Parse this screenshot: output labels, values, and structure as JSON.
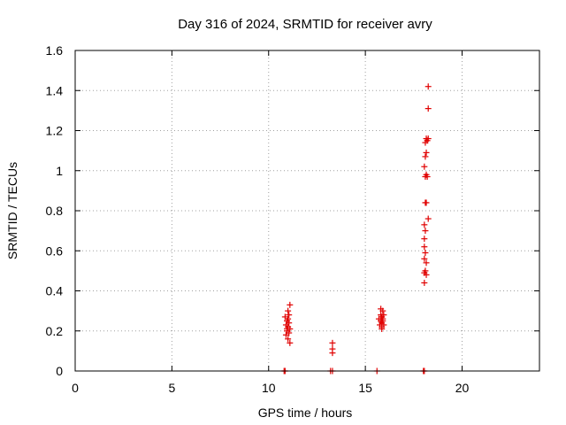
{
  "chart_data": {
    "type": "scatter",
    "title": "Day 316 of 2024, SRMTID for receiver avry",
    "xlabel": "GPS time / hours",
    "ylabel": "SRMTID / TECUs",
    "xlim": [
      0,
      24
    ],
    "ylim": [
      0,
      1.6
    ],
    "xticks": [
      0,
      5,
      10,
      15,
      20
    ],
    "xtick_labels": [
      "0",
      "5",
      "10",
      "15",
      "20"
    ],
    "yticks": [
      0,
      0.2,
      0.4,
      0.6,
      0.8,
      1.0,
      1.2,
      1.4,
      1.6
    ],
    "ytick_labels": [
      "0",
      "0.2",
      "0.4",
      "0.6",
      "0.8",
      "1",
      "1.2",
      "1.4",
      "1.6"
    ],
    "grid": true,
    "marker": "+",
    "marker_color": "#e00000",
    "series": [
      {
        "name": "SRMTID",
        "points": [
          [
            10.8,
            0
          ],
          [
            10.85,
            0
          ],
          [
            10.85,
            0.27
          ],
          [
            10.9,
            0.23
          ],
          [
            10.9,
            0.18
          ],
          [
            10.95,
            0.25
          ],
          [
            10.95,
            0.2
          ],
          [
            11.0,
            0.3
          ],
          [
            11.0,
            0.22
          ],
          [
            11.0,
            0.16
          ],
          [
            11.05,
            0.28
          ],
          [
            11.05,
            0.24
          ],
          [
            11.05,
            0.19
          ],
          [
            11.1,
            0.33
          ],
          [
            11.1,
            0.21
          ],
          [
            11.1,
            0.14
          ],
          [
            11.0,
            0.26
          ],
          [
            10.95,
            0.21
          ],
          [
            13.2,
            0
          ],
          [
            13.3,
            0
          ],
          [
            13.3,
            0.14
          ],
          [
            13.3,
            0.11
          ],
          [
            13.3,
            0.09
          ],
          [
            15.6,
            0
          ],
          [
            15.7,
            0.26
          ],
          [
            15.75,
            0.23
          ],
          [
            15.8,
            0.31
          ],
          [
            15.8,
            0.28
          ],
          [
            15.8,
            0.25
          ],
          [
            15.85,
            0.24
          ],
          [
            15.85,
            0.22
          ],
          [
            15.85,
            0.27
          ],
          [
            15.9,
            0.3
          ],
          [
            15.9,
            0.26
          ],
          [
            15.9,
            0.25
          ],
          [
            15.95,
            0.28
          ],
          [
            15.95,
            0.23
          ],
          [
            15.85,
            0.21
          ],
          [
            18.0,
            0
          ],
          [
            18.05,
            0
          ],
          [
            18.05,
            0.44
          ],
          [
            18.05,
            0.49
          ],
          [
            18.1,
            0.5
          ],
          [
            18.15,
            0.48
          ],
          [
            18.05,
            0.56
          ],
          [
            18.1,
            0.59
          ],
          [
            18.15,
            0.54
          ],
          [
            18.05,
            0.62
          ],
          [
            18.05,
            0.66
          ],
          [
            18.1,
            0.7
          ],
          [
            18.05,
            0.73
          ],
          [
            18.25,
            0.76
          ],
          [
            18.1,
            0.84
          ],
          [
            18.15,
            0.84
          ],
          [
            18.1,
            0.97
          ],
          [
            18.15,
            0.98
          ],
          [
            18.2,
            0.97
          ],
          [
            18.05,
            1.02
          ],
          [
            18.1,
            1.07
          ],
          [
            18.15,
            1.09
          ],
          [
            18.1,
            1.14
          ],
          [
            18.2,
            1.15
          ],
          [
            18.15,
            1.16
          ],
          [
            18.25,
            1.16
          ],
          [
            18.25,
            1.31
          ],
          [
            18.25,
            1.42
          ]
        ]
      }
    ]
  }
}
